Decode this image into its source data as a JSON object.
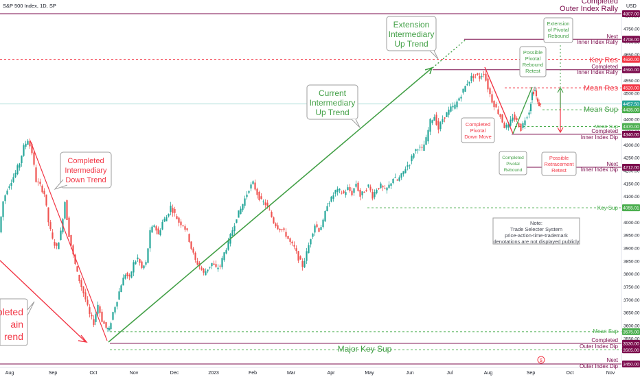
{
  "header": {
    "title": "S&P 500 Index, 1D, SP",
    "currency": "USD"
  },
  "chart_data": {
    "type": "candlestick",
    "title": "S&P 500 Index, 1D, SP",
    "ylim": [
      3430,
      4830
    ],
    "x_ticks": [
      "Aug",
      "Sep",
      "Oct",
      "Nov",
      "Dec",
      "2023",
      "Feb",
      "Mar",
      "Apr",
      "May",
      "Jun",
      "Jul",
      "Aug",
      "Sep",
      "Oct",
      "Nov"
    ],
    "y_ticks": [
      4800,
      4750,
      4700,
      4650,
      4600,
      4550,
      4500,
      4450,
      4400,
      4350,
      4300,
      4250,
      4200,
      4150,
      4100,
      4050,
      4000,
      3950,
      3900,
      3850,
      3800,
      3750,
      3700,
      3650,
      3600,
      3550,
      3500,
      3450
    ],
    "close_path": [
      [
        0,
        3960
      ],
      [
        6,
        4080
      ],
      [
        12,
        4130
      ],
      [
        18,
        4160
      ],
      [
        24,
        4190
      ],
      [
        30,
        4230
      ],
      [
        36,
        4290
      ],
      [
        42,
        4320
      ],
      [
        48,
        4270
      ],
      [
        54,
        4160
      ],
      [
        60,
        4140
      ],
      [
        66,
        4110
      ],
      [
        72,
        4000
      ],
      [
        78,
        3930
      ],
      [
        84,
        3900
      ],
      [
        90,
        3960
      ],
      [
        96,
        4080
      ],
      [
        102,
        3950
      ],
      [
        108,
        3870
      ],
      [
        114,
        3800
      ],
      [
        120,
        3750
      ],
      [
        126,
        3700
      ],
      [
        132,
        3640
      ],
      [
        138,
        3610
      ],
      [
        144,
        3680
      ],
      [
        150,
        3620
      ],
      [
        156,
        3590
      ],
      [
        160,
        3580
      ],
      [
        166,
        3650
      ],
      [
        172,
        3700
      ],
      [
        178,
        3760
      ],
      [
        184,
        3800
      ],
      [
        190,
        3780
      ],
      [
        196,
        3840
      ],
      [
        202,
        3860
      ],
      [
        208,
        3820
      ],
      [
        214,
        3840
      ],
      [
        220,
        3960
      ],
      [
        226,
        3990
      ],
      [
        232,
        3950
      ],
      [
        238,
        4000
      ],
      [
        244,
        4020
      ],
      [
        250,
        4060
      ],
      [
        256,
        4030
      ],
      [
        262,
        4000
      ],
      [
        268,
        3990
      ],
      [
        274,
        3960
      ],
      [
        280,
        3900
      ],
      [
        286,
        3850
      ],
      [
        292,
        3830
      ],
      [
        298,
        3800
      ],
      [
        304,
        3820
      ],
      [
        310,
        3840
      ],
      [
        316,
        3820
      ],
      [
        322,
        3830
      ],
      [
        328,
        3880
      ],
      [
        334,
        3920
      ],
      [
        340,
        3970
      ],
      [
        346,
        4020
      ],
      [
        352,
        4050
      ],
      [
        358,
        4090
      ],
      [
        364,
        4130
      ],
      [
        370,
        4150
      ],
      [
        376,
        4110
      ],
      [
        382,
        4080
      ],
      [
        388,
        4070
      ],
      [
        394,
        4040
      ],
      [
        400,
        4000
      ],
      [
        406,
        3980
      ],
      [
        412,
        3970
      ],
      [
        418,
        3950
      ],
      [
        424,
        3920
      ],
      [
        430,
        3900
      ],
      [
        436,
        3860
      ],
      [
        442,
        3830
      ],
      [
        448,
        3880
      ],
      [
        454,
        3940
      ],
      [
        460,
        3990
      ],
      [
        466,
        3970
      ],
      [
        472,
        4000
      ],
      [
        478,
        4070
      ],
      [
        484,
        4090
      ],
      [
        490,
        4120
      ],
      [
        496,
        4120
      ],
      [
        502,
        4110
      ],
      [
        508,
        4130
      ],
      [
        514,
        4110
      ],
      [
        520,
        4150
      ],
      [
        526,
        4100
      ],
      [
        532,
        4120
      ],
      [
        538,
        4140
      ],
      [
        544,
        4100
      ],
      [
        550,
        4130
      ],
      [
        556,
        4140
      ],
      [
        562,
        4120
      ],
      [
        568,
        4140
      ],
      [
        574,
        4170
      ],
      [
        580,
        4160
      ],
      [
        586,
        4180
      ],
      [
        592,
        4210
      ],
      [
        598,
        4230
      ],
      [
        604,
        4270
      ],
      [
        610,
        4290
      ],
      [
        616,
        4280
      ],
      [
        622,
        4320
      ],
      [
        628,
        4390
      ],
      [
        634,
        4410
      ],
      [
        640,
        4360
      ],
      [
        646,
        4400
      ],
      [
        652,
        4420
      ],
      [
        658,
        4440
      ],
      [
        664,
        4450
      ],
      [
        670,
        4480
      ],
      [
        676,
        4510
      ],
      [
        682,
        4540
      ],
      [
        688,
        4560
      ],
      [
        694,
        4570
      ],
      [
        700,
        4560
      ],
      [
        706,
        4580
      ],
      [
        712,
        4520
      ],
      [
        718,
        4470
      ],
      [
        724,
        4440
      ],
      [
        730,
        4410
      ],
      [
        736,
        4370
      ],
      [
        742,
        4370
      ],
      [
        748,
        4410
      ],
      [
        754,
        4390
      ],
      [
        760,
        4360
      ],
      [
        766,
        4400
      ],
      [
        772,
        4430
      ],
      [
        776,
        4500
      ],
      [
        780,
        4510
      ],
      [
        784,
        4460
      ],
      [
        788,
        4450
      ]
    ],
    "levels": [
      {
        "label": "Completed Outer Index Rally",
        "value": 4807.0,
        "tag": "4807.00",
        "color": "#7b0b4c"
      },
      {
        "label": "Next Inner Index Rally",
        "value": 4708.0,
        "tag": "4708.00",
        "color": "#7b0b4c"
      },
      {
        "label": "Key Res",
        "value": 4630.0,
        "tag": "4630.00",
        "color": "#f23645"
      },
      {
        "label": "Completed Inner Index Rally",
        "value": 4590.0,
        "tag": "4590.00",
        "color": "#7b0b4c"
      },
      {
        "label": "Mean Res",
        "value": 4520.0,
        "tag": "4520.00",
        "color": "#f23645"
      },
      {
        "label": "",
        "value": 4457.5,
        "tag": "4457.50",
        "color": "#26a69a"
      },
      {
        "label": "Mean Sup",
        "value": 4435.0,
        "tag": "4435.00",
        "color": "#4caf50"
      },
      {
        "label": "Mean Sup",
        "value": 4370.0,
        "tag": "4370.00",
        "color": "#4caf50"
      },
      {
        "label": "Completed Inner Index Dip",
        "value": 4340.0,
        "tag": "4340.00",
        "color": "#7b0b4c"
      },
      {
        "label": "Next Inner Index Dip",
        "value": 4212.0,
        "tag": "4212.00",
        "color": "#7b0b4c"
      },
      {
        "label": "Key Sup",
        "value": 4055.01,
        "tag": "4055.01",
        "color": "#4caf50"
      },
      {
        "label": "Mean Sup",
        "value": 3575.0,
        "tag": "3575.00",
        "color": "#4caf50"
      },
      {
        "label": "Completed",
        "value": 3530.0,
        "tag": "3530.00",
        "color": "#7b0b4c"
      },
      {
        "label": "Outer Index Dip",
        "value": 3505.0,
        "tag": "3505.00",
        "color": "#7b0b4c"
      },
      {
        "label": "Major Key Sup",
        "value": 3505.0,
        "tag": "",
        "color": "#4caf50"
      },
      {
        "label": "Next",
        "value": 3450.0,
        "tag": "3450.00",
        "color": "#7b0b4c"
      }
    ],
    "colors": {
      "up": "#26a69a",
      "down": "#ef5350",
      "green_trend": "#43a047",
      "red_trend": "#f23645",
      "purple": "#7b0b4c"
    }
  },
  "annotations": {
    "completed_intermediary_down": [
      "Completed",
      "Intermediary",
      "Down Trend"
    ],
    "current_intermediary_up": [
      "Current",
      "Intermediary",
      "Up Trend"
    ],
    "extension_intermediary_up": [
      "Extension",
      "Intermediary",
      "Up Trend"
    ],
    "completed_main": [
      "pleted",
      "ain",
      "rend"
    ],
    "completed_pivotal_down": [
      "Completed",
      "Pivotal",
      "Down Move"
    ],
    "completed_pivotal_rebound": [
      "Completed",
      "Pivotal",
      "Rebound"
    ],
    "possible_pivotal_rebound": [
      "Possible",
      "Pivotal",
      "Rebound",
      "Retest"
    ],
    "extension_pivotal_rebound": [
      "Extension",
      "of Pivotal",
      "Rebound"
    ],
    "possible_retracement": [
      "Possible",
      "Retracement",
      "Retest"
    ],
    "note": [
      "Note:",
      "Trade Selecter System",
      "price-action-time-trademark",
      "denotations are not displayed publicly"
    ],
    "top_label_1": "Completed",
    "top_label_2": "Outer Index Rally",
    "next_inner_rally_1": "Next",
    "next_inner_rally_2": "Inner Index Rally",
    "key_res": "Key Res",
    "completed_inner_rally_1": "Completed",
    "completed_inner_rally_2": "Inner Index Rally",
    "mean_res": "Mean Res",
    "mean_sup_1": "Mean Sup",
    "mean_sup_2": "Mean Sup",
    "completed_inner_dip_1": "Completed",
    "completed_inner_dip_2": "Inner Index Dip",
    "next_inner_dip_1": "Next",
    "next_inner_dip_2": "Inner Index Dip",
    "key_sup": "Key Sup",
    "mean_sup_3": "Mean Sup",
    "completed_outer_dip_1": "Completed",
    "completed_outer_dip_2": "Outer Index Dip",
    "major_key_sup": "Major Key Sup",
    "next_outer_1": "Next",
    "next_outer_2": "Outer Index Dip"
  }
}
